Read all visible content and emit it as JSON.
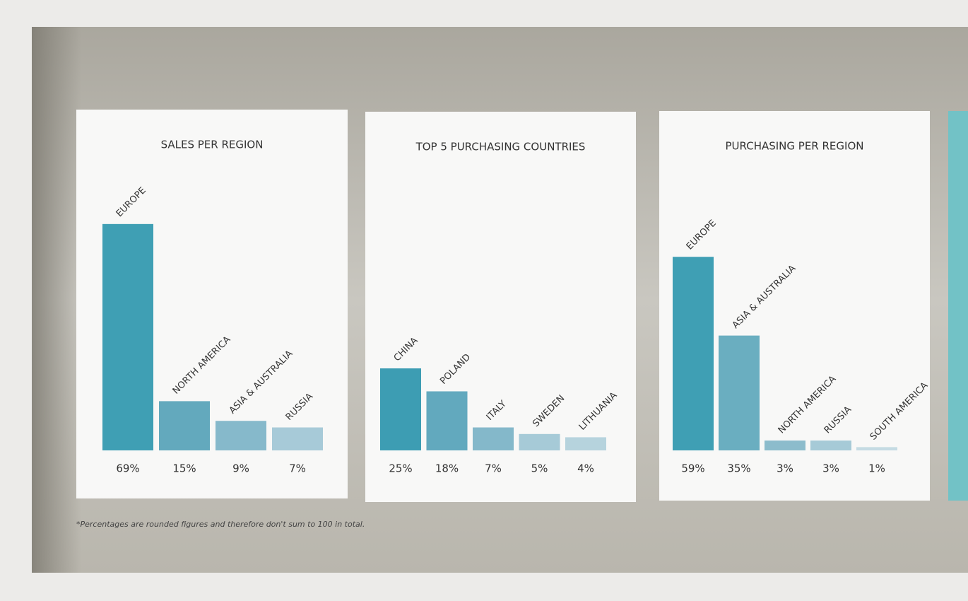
{
  "chart_data": [
    {
      "type": "bar",
      "title": "SALES PER REGION",
      "categories": [
        "EUROPE",
        "NORTH AMERICA",
        "ASIA & AUSTRALIA",
        "RUSSIA"
      ],
      "values": [
        69,
        15,
        9,
        7
      ],
      "value_labels": [
        "69%",
        "15%",
        "9%",
        "7%"
      ],
      "colors": [
        "#3f9fb4",
        "#63a9bd",
        "#86b9cb",
        "#a7cad8"
      ]
    },
    {
      "type": "bar",
      "title": "TOP 5 PURCHASING COUNTRIES",
      "categories": [
        "CHINA",
        "POLAND",
        "ITALY",
        "SWEDEN",
        "LITHUANIA"
      ],
      "values": [
        25,
        18,
        7,
        5,
        4
      ],
      "value_labels": [
        "25%",
        "18%",
        "7%",
        "5%",
        "4%"
      ],
      "colors": [
        "#3d9db3",
        "#62a9be",
        "#84b8ca",
        "#a6cad7",
        "#b6d3dd"
      ]
    },
    {
      "type": "bar",
      "title": "PURCHASING PER REGION",
      "categories": [
        "EUROPE",
        "ASIA & AUSTRALIA",
        "NORTH AMERICA",
        "RUSSIA",
        "SOUTH AMERICA"
      ],
      "values": [
        59,
        35,
        3,
        3,
        1
      ],
      "value_labels": [
        "59%",
        "35%",
        "3%",
        "3%",
        "1%"
      ],
      "colors": [
        "#3f9fb4",
        "#6aaec0",
        "#8cbccc",
        "#a6cad7",
        "#c5dbe3"
      ]
    }
  ],
  "footnote": "*Percentages are rounded figures and therefore don't sum to 100 in total."
}
